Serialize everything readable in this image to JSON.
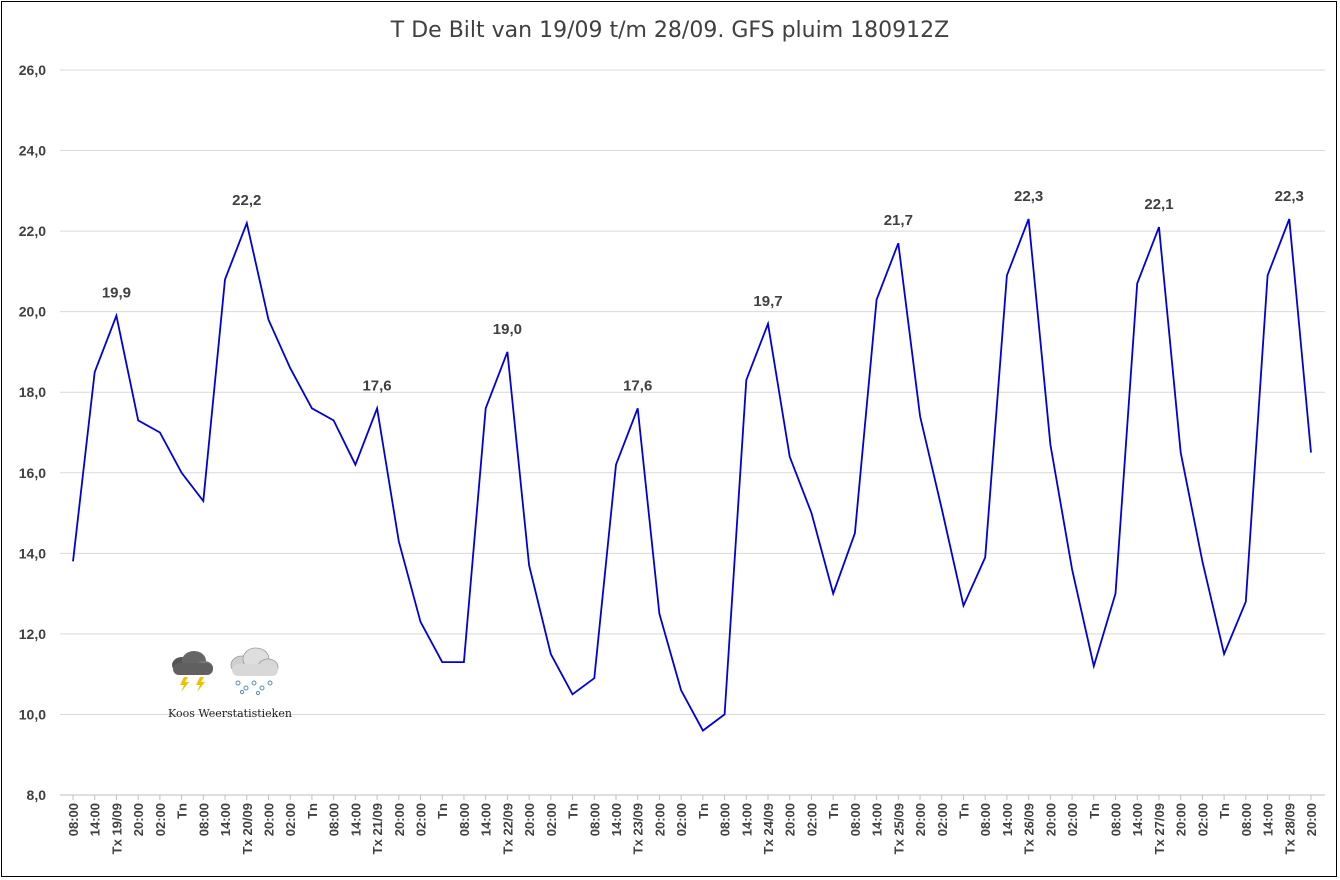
{
  "chart_data": {
    "type": "line",
    "title": "T De Bilt van 19/09 t/m 28/09. GFS pluim 180912Z",
    "xlabel": "",
    "ylabel": "",
    "ylim": [
      8,
      26
    ],
    "yticks": [
      "8,0",
      "10,0",
      "12,0",
      "14,0",
      "16,0",
      "18,0",
      "20,0",
      "22,0",
      "24,0",
      "26,0"
    ],
    "grid": true,
    "line_color": "#0000dd",
    "categories": [
      "08:00",
      "14:00",
      "Tx 19/09",
      "20:00",
      "02:00",
      "Tn",
      "08:00",
      "14:00",
      "Tx 20/09",
      "20:00",
      "02:00",
      "Tn",
      "08:00",
      "14:00",
      "Tx 21/09",
      "20:00",
      "02:00",
      "Tn",
      "08:00",
      "14:00",
      "Tx 22/09",
      "20:00",
      "02:00",
      "Tn",
      "08:00",
      "14:00",
      "Tx 23/09",
      "20:00",
      "02:00",
      "Tn",
      "08:00",
      "14:00",
      "Tx 24/09",
      "20:00",
      "02:00",
      "Tn",
      "08:00",
      "14:00",
      "Tx 25/09",
      "20:00",
      "02:00",
      "Tn",
      "08:00",
      "14:00",
      "Tx 26/09",
      "20:00",
      "02:00",
      "Tn",
      "08:00",
      "14:00",
      "Tx 27/09",
      "20:00",
      "02:00",
      "Tn",
      "08:00",
      "14:00",
      "Tx 28/09",
      "20:00"
    ],
    "values": [
      13.8,
      18.5,
      19.9,
      17.3,
      17.0,
      16.0,
      15.3,
      20.8,
      22.2,
      19.8,
      18.6,
      17.6,
      17.3,
      16.2,
      17.6,
      14.3,
      12.3,
      11.3,
      11.3,
      17.6,
      19.0,
      13.7,
      11.5,
      10.5,
      10.9,
      16.2,
      17.6,
      12.5,
      10.6,
      9.6,
      10.0,
      18.3,
      19.7,
      16.4,
      15.0,
      13.0,
      14.5,
      20.3,
      21.7,
      17.4,
      15.1,
      12.7,
      13.9,
      20.9,
      22.3,
      16.7,
      13.6,
      11.2,
      13.0,
      20.7,
      22.1,
      16.5,
      13.8,
      11.5,
      12.8,
      20.9,
      22.3,
      16.5
    ],
    "data_labels": [
      {
        "index": 2,
        "text": "19,9"
      },
      {
        "index": 8,
        "text": "22,2"
      },
      {
        "index": 14,
        "text": "17,6"
      },
      {
        "index": 20,
        "text": "19,0"
      },
      {
        "index": 26,
        "text": "17,6"
      },
      {
        "index": 32,
        "text": "19,7"
      },
      {
        "index": 38,
        "text": "21,7"
      },
      {
        "index": 44,
        "text": "22,3"
      },
      {
        "index": 50,
        "text": "22,1"
      },
      {
        "index": 56,
        "text": "22,3"
      }
    ]
  },
  "logo": {
    "text": "Koos Weerstatistieken",
    "icons": [
      "thunderstorm-cloud-icon",
      "snow-cloud-icon"
    ]
  }
}
